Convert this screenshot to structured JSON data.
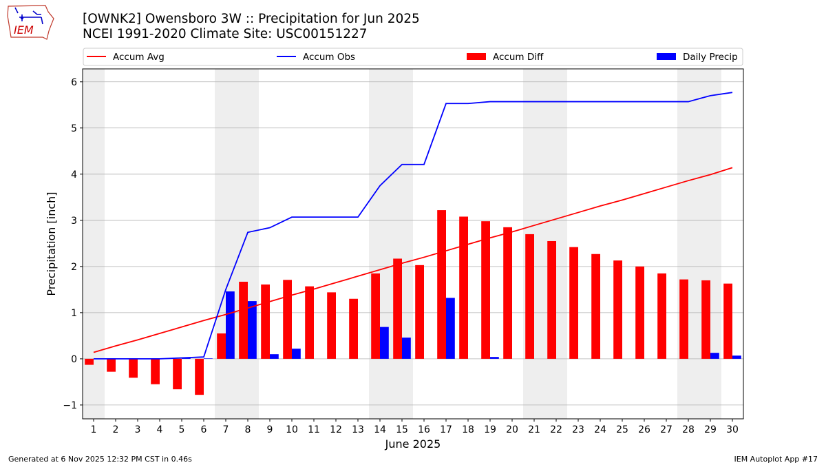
{
  "header": {
    "title_line1": "[OWNK2] Owensboro 3W :: Precipitation for Jun 2025",
    "title_line2": "NCEI 1991-2020 Climate Site: USC00151227",
    "logo_text": "IEM"
  },
  "footer": {
    "generated": "Generated at 6 Nov 2025 12:32 PM CST in 0.46s",
    "app": "IEM Autoplot App #17"
  },
  "colors": {
    "avg": "#ff0000",
    "obs": "#0000ff",
    "diff": "#ff0000",
    "daily": "#0000ff",
    "weekend": "#eeeeee",
    "grid": "#b0b0b0"
  },
  "chart_data": {
    "type": "bar",
    "title": "[OWNK2] Owensboro 3W :: Precipitation for Jun 2025",
    "xlabel": "June 2025",
    "ylabel": "Precipitation [inch]",
    "ylim": [
      -1.3,
      6.28
    ],
    "yticks": [
      -1,
      0,
      1,
      2,
      3,
      4,
      5,
      6
    ],
    "grid": "horizontal",
    "legend_placement": "top, above plot",
    "legend": [
      "Accum Avg",
      "Accum Obs",
      "Accum Diff",
      "Daily Precip"
    ],
    "days": [
      1,
      2,
      3,
      4,
      5,
      6,
      7,
      8,
      9,
      10,
      11,
      12,
      13,
      14,
      15,
      16,
      17,
      18,
      19,
      20,
      21,
      22,
      23,
      24,
      25,
      26,
      27,
      28,
      29,
      30
    ],
    "shaded_weekend_days": [
      1,
      7,
      8,
      14,
      15,
      21,
      22,
      28,
      29
    ],
    "series": [
      {
        "name": "Accum Avg",
        "kind": "line",
        "values": [
          0.14,
          0.28,
          0.41,
          0.55,
          0.69,
          0.83,
          0.96,
          1.1,
          1.24,
          1.38,
          1.51,
          1.65,
          1.79,
          1.93,
          2.07,
          2.2,
          2.34,
          2.48,
          2.62,
          2.75,
          2.89,
          3.03,
          3.17,
          3.31,
          3.44,
          3.58,
          3.72,
          3.86,
          3.99,
          4.14
        ]
      },
      {
        "name": "Accum Obs",
        "kind": "line",
        "values": [
          0.0,
          0.0,
          0.0,
          0.0,
          0.02,
          0.04,
          1.5,
          2.74,
          2.84,
          3.07,
          3.07,
          3.07,
          3.07,
          3.75,
          4.21,
          4.21,
          5.53,
          5.53,
          5.57,
          5.57,
          5.57,
          5.57,
          5.57,
          5.57,
          5.57,
          5.57,
          5.57,
          5.57,
          5.7,
          5.77
        ]
      },
      {
        "name": "Accum Diff",
        "kind": "bar",
        "values": [
          -0.13,
          -0.28,
          -0.41,
          -0.55,
          -0.66,
          -0.78,
          0.55,
          1.67,
          1.61,
          1.71,
          1.57,
          1.44,
          1.3,
          1.85,
          2.17,
          2.03,
          3.22,
          3.08,
          2.98,
          2.85,
          2.7,
          2.55,
          2.42,
          2.27,
          2.13,
          2.0,
          1.85,
          1.72,
          1.7,
          1.63
        ]
      },
      {
        "name": "Daily Precip",
        "kind": "bar",
        "values": [
          0.0,
          0.0,
          0.0,
          0.0,
          0.02,
          0.01,
          1.46,
          1.25,
          0.1,
          0.22,
          0.0,
          0.0,
          0.0,
          0.69,
          0.46,
          0.0,
          1.32,
          0.0,
          0.04,
          0.0,
          0.0,
          0.0,
          0.0,
          0.0,
          0.0,
          0.0,
          0.0,
          0.0,
          0.13,
          0.07
        ]
      }
    ]
  }
}
